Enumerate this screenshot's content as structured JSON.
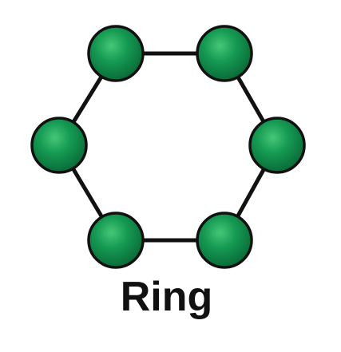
{
  "diagram": {
    "caption": "Ring",
    "node_color": "#0f8a4a",
    "node_highlight": "#3fc06f",
    "edge_color": "#111111"
  }
}
